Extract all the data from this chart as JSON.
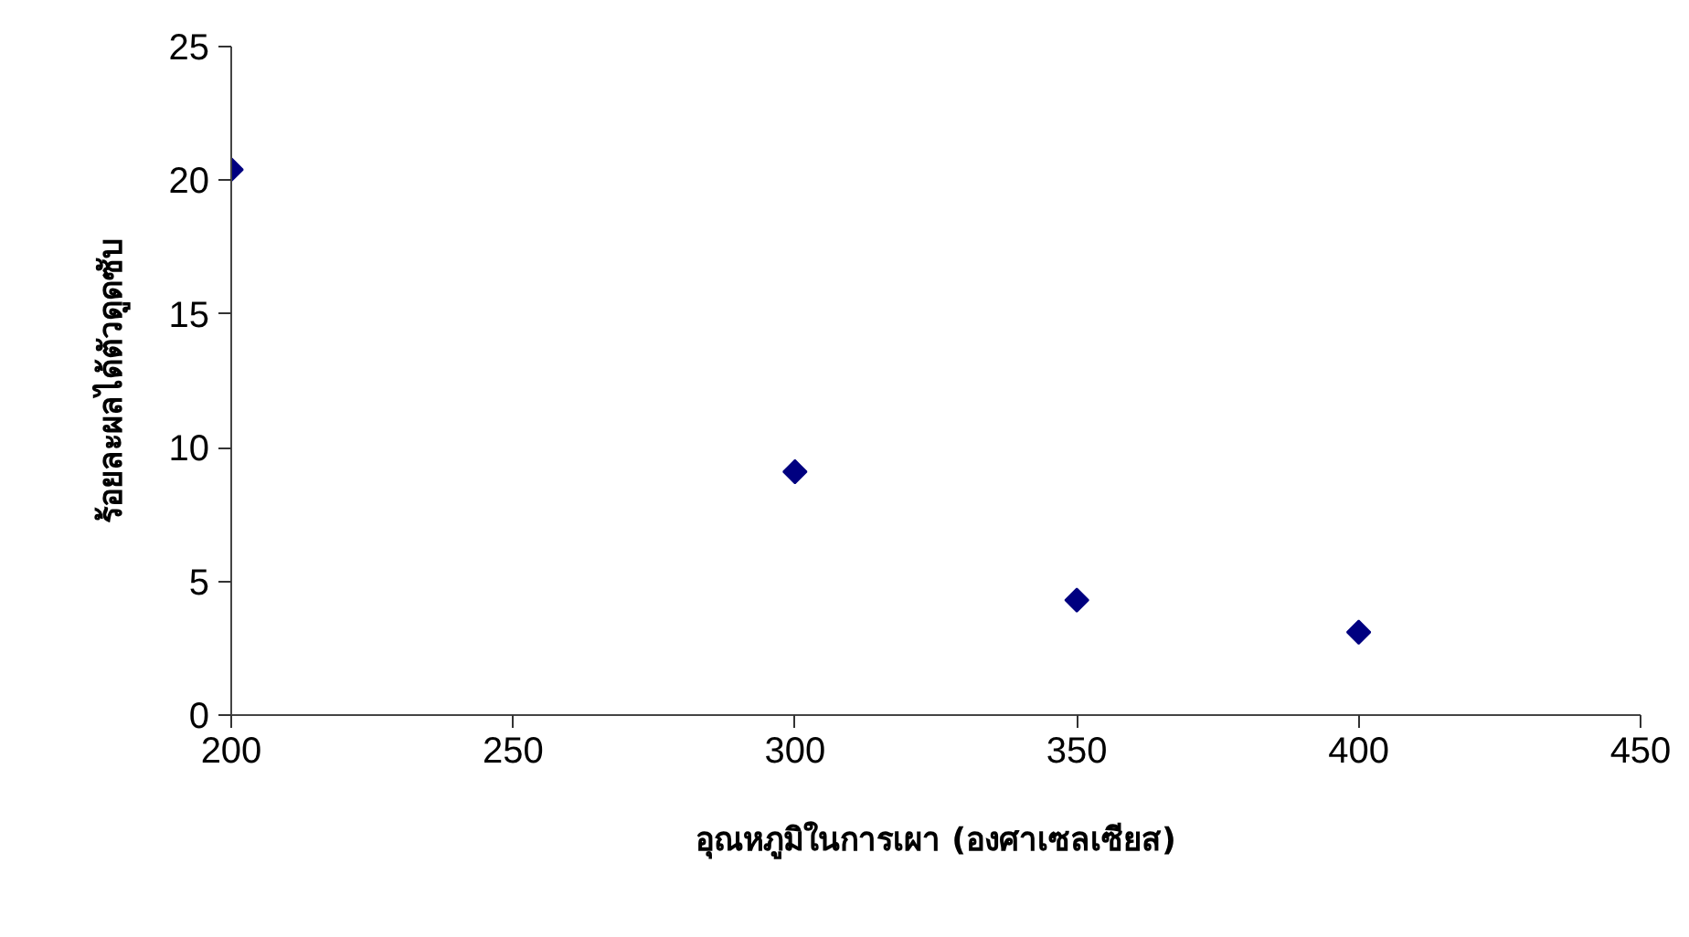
{
  "chart_data": {
    "type": "scatter",
    "xlabel": "อุณหภูมิในการเผา (องศาเซลเซียส)",
    "ylabel": "ร้อยละผลได้ตัวดูดซับ",
    "x": [
      200,
      300,
      350,
      400
    ],
    "series": [
      {
        "color": "#000080",
        "values": [
          20.4,
          9.1,
          4.3,
          3.1
        ]
      }
    ],
    "xlim": [
      200,
      450
    ],
    "ylim": [
      0,
      25
    ],
    "xticks": [
      200,
      250,
      300,
      350,
      400,
      450
    ],
    "yticks": [
      0,
      5,
      10,
      15,
      20,
      25
    ],
    "marker": "diamond",
    "grid": false
  }
}
